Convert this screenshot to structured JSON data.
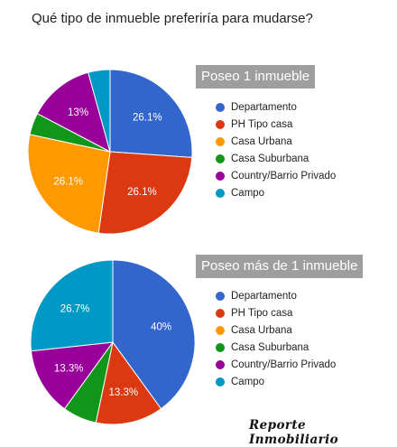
{
  "title": "Qué tipo de inmueble preferiría para mudarse?",
  "watermark": "Reporte Inmobiliario",
  "colors": {
    "Departamento": "#3366cc",
    "PH Tipo casa": "#dc3912",
    "Casa Urbana": "#ff9900",
    "Casa Suburbana": "#109618",
    "Country/Barrio Privado": "#990099",
    "Campo": "#0099c6"
  },
  "chart_data": [
    {
      "type": "pie",
      "title": "Poseo 1 inmueble",
      "categories": [
        "Departamento",
        "PH Tipo casa",
        "Casa Urbana",
        "Casa Suburbana",
        "Country/Barrio Privado",
        "Campo"
      ],
      "values": [
        26.1,
        26.1,
        26.1,
        4.3,
        13.0,
        4.3
      ],
      "value_labels": [
        "26.1%",
        "26.1%",
        "26.1%",
        "",
        "13%",
        ""
      ],
      "legend": "right"
    },
    {
      "type": "pie",
      "title": "Poseo más de 1 inmueble",
      "categories": [
        "Departamento",
        "PH Tipo casa",
        "Casa Urbana",
        "Casa Suburbana",
        "Country/Barrio Privado",
        "Campo"
      ],
      "values": [
        40.0,
        13.3,
        0.0,
        6.7,
        13.3,
        26.7
      ],
      "value_labels": [
        "40%",
        "13.3%",
        "",
        "",
        "13.3%",
        "26.7%"
      ],
      "legend": "right"
    }
  ]
}
